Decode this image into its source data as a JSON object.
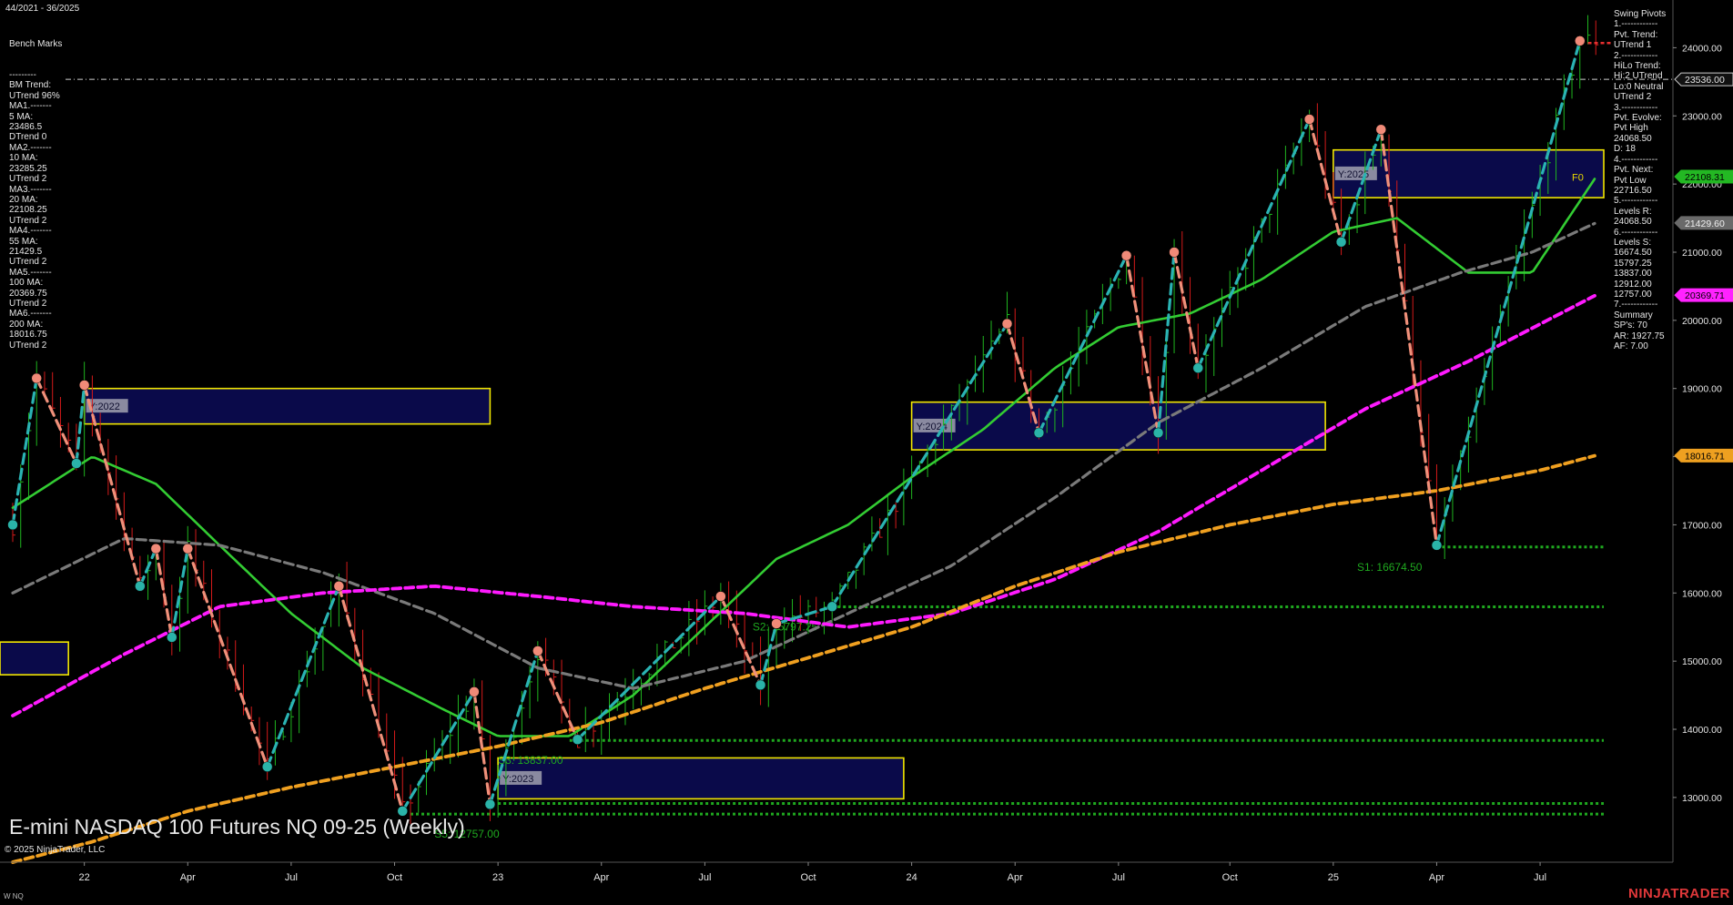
{
  "header": {
    "date_range": "44/2021 - 36/2025",
    "bench_title": "Bench Marks",
    "bench_lines": [
      "---------",
      "BM Trend:",
      "UTrend 96%",
      "MA1.-------",
      "5 MA:",
      "23486.5",
      "DTrend 0",
      "MA2.-------",
      "10 MA:",
      "23285.25",
      "UTrend 2",
      "MA3.-------",
      "20 MA:",
      "22108.25",
      "UTrend 2",
      "MA4.-------",
      "55 MA:",
      "21429.5",
      "UTrend 2",
      "MA5.-------",
      "100 MA:",
      "20369.75",
      "UTrend 2",
      "MA6.-------",
      "200 MA:",
      "18016.75",
      "UTrend 2"
    ]
  },
  "swing_panel": {
    "lines": [
      "Swing Pivots",
      "1.------------",
      "Pvt. Trend:",
      "UTrend 1",
      "2.------------",
      "HiLo Trend:",
      "Hi:2 UTrend",
      "Lo:0 Neutral",
      "UTrend 2",
      "3.------------",
      "Pvt. Evolve:",
      "Pvt High",
      "24068.50",
      "D: 18",
      "4.------------",
      "Pvt. Next:",
      "Pvt Low",
      "22716.50",
      "5.------------",
      "Levels R:",
      "24068.50",
      "6.------------",
      "Levels S:",
      "16674.50",
      "15797.25",
      "13837.00",
      "12912.00",
      "12757.00",
      "7.------------",
      "Summary",
      "SP's: 70",
      "AR: 1927.75",
      "AF: 7.00"
    ]
  },
  "footer": {
    "title": "E-mini NASDAQ 100 Futures NQ 09-25 (Weekly)",
    "copyright": "© 2025 NinjaTrader, LLC",
    "instrument": "W NQ",
    "brand": "NINJATRADER"
  },
  "colors": {
    "background": "#000000",
    "ma20": "#33cc33",
    "ma55": "#7a7a7a",
    "ma100": "#ff1aff",
    "ma200": "#f0a020",
    "swing_up": "#2ab3b3",
    "swing_down": "#f0907a",
    "support": "#1fa81f",
    "box_border": "#f2e600",
    "box_fill": "#0a0a4a"
  },
  "chart_data": {
    "type": "line",
    "title": "E-mini NASDAQ 100 Futures NQ 09-25 (Weekly)",
    "x_tick_labels": [
      "22",
      "Apr",
      "Jul",
      "Oct",
      "23",
      "Apr",
      "Jul",
      "Oct",
      "24",
      "Apr",
      "Jul",
      "Oct",
      "25",
      "Apr",
      "Jul"
    ],
    "y_tick_labels": [
      "24000.00",
      "23000.00",
      "22000.00",
      "21000.00",
      "20000.00",
      "19000.00",
      "18000.00",
      "17000.00",
      "16000.00",
      "15000.00",
      "14000.00",
      "13000.00"
    ],
    "y_ticks": [
      24000,
      23000,
      22000,
      21000,
      20000,
      19000,
      18000,
      17000,
      16000,
      15000,
      14000,
      13000
    ],
    "ylim": [
      12050,
      24700
    ],
    "x_range": [
      "2021-11-01",
      "2025-09-01"
    ],
    "price_line": {
      "value": 23536.0,
      "label": "23536.00"
    },
    "price_tags": [
      {
        "label": "23536.00",
        "value": 23536.0,
        "color": "#111111",
        "text_color": "#e6e6e6",
        "border": "#cccccc"
      },
      {
        "label": "22108.31",
        "value": 22108.31,
        "color": "#23b823",
        "text_color": "#000000",
        "border": "#23b823"
      },
      {
        "label": "21429.60",
        "value": 21429.6,
        "color": "#6a6a6a",
        "text_color": "#f0f0f0",
        "border": "#6a6a6a"
      },
      {
        "label": "20369.71",
        "value": 20369.71,
        "color": "#ff22ff",
        "text_color": "#000000",
        "border": "#ff22ff"
      },
      {
        "label": "18016.71",
        "value": 18016.71,
        "color": "#eea020",
        "text_color": "#000000",
        "border": "#eea020"
      }
    ],
    "series": [
      {
        "name": "20 MA",
        "color": "#33cc33",
        "style": "solid",
        "x": [
          "2021-11-01",
          "2022-01-10",
          "2022-03-07",
          "2022-05-02",
          "2022-07-04",
          "2022-09-05",
          "2022-11-14",
          "2023-01-02",
          "2023-03-06",
          "2023-05-01",
          "2023-07-03",
          "2023-09-04",
          "2023-11-06",
          "2024-01-01",
          "2024-03-04",
          "2024-05-06",
          "2024-07-01",
          "2024-09-02",
          "2024-11-04",
          "2025-01-06",
          "2025-03-03",
          "2025-05-05",
          "2025-06-30",
          "2025-08-25"
        ],
        "values": [
          17250,
          18000,
          17600,
          16700,
          15700,
          14900,
          14300,
          13900,
          13900,
          14500,
          15500,
          16500,
          17000,
          17700,
          18400,
          19300,
          19900,
          20100,
          20600,
          21300,
          21500,
          20700,
          20700,
          22100
        ]
      },
      {
        "name": "55 MA",
        "color": "#7a7a7a",
        "style": "dashed",
        "x": [
          "2021-11-01",
          "2022-02-07",
          "2022-05-02",
          "2022-08-01",
          "2022-11-07",
          "2023-02-06",
          "2023-05-01",
          "2023-08-07",
          "2023-11-06",
          "2024-02-05",
          "2024-05-06",
          "2024-08-05",
          "2024-11-04",
          "2025-02-03",
          "2025-04-28",
          "2025-06-30",
          "2025-08-25"
        ],
        "values": [
          16000,
          16800,
          16700,
          16300,
          15700,
          14900,
          14600,
          15000,
          15700,
          16400,
          17400,
          18500,
          19300,
          20200,
          20700,
          21000,
          21430
        ]
      },
      {
        "name": "100 MA",
        "color": "#ff1aff",
        "style": "dashed",
        "x": [
          "2021-11-01",
          "2022-02-07",
          "2022-05-02",
          "2022-08-01",
          "2022-11-07",
          "2023-02-06",
          "2023-05-01",
          "2023-08-07",
          "2023-11-06",
          "2024-02-05",
          "2024-05-06",
          "2024-08-05",
          "2024-11-04",
          "2025-02-03",
          "2025-05-05",
          "2025-08-25"
        ],
        "values": [
          14200,
          15100,
          15800,
          16000,
          16100,
          15950,
          15800,
          15700,
          15500,
          15700,
          16200,
          16900,
          17800,
          18700,
          19400,
          20370
        ]
      },
      {
        "name": "200 MA",
        "color": "#f0a020",
        "style": "dashed",
        "x": [
          "2021-11-01",
          "2022-01-10",
          "2022-04-04",
          "2022-07-04",
          "2022-10-03",
          "2023-01-02",
          "2023-04-03",
          "2023-07-03",
          "2023-10-02",
          "2024-01-01",
          "2024-04-01",
          "2024-07-01",
          "2024-10-07",
          "2025-01-06",
          "2025-04-07",
          "2025-07-07",
          "2025-08-25"
        ],
        "values": [
          12050,
          12350,
          12800,
          13150,
          13450,
          13750,
          14100,
          14600,
          15050,
          15500,
          16100,
          16600,
          17000,
          17300,
          17500,
          17800,
          18017
        ]
      }
    ],
    "swing_points": [
      {
        "x": "2021-11-01",
        "y": 17000,
        "type": "low"
      },
      {
        "x": "2021-11-22",
        "y": 19150,
        "type": "high"
      },
      {
        "x": "2021-12-27",
        "y": 17900,
        "type": "low"
      },
      {
        "x": "2022-01-03",
        "y": 19050,
        "type": "high"
      },
      {
        "x": "2022-02-21",
        "y": 16100,
        "type": "low"
      },
      {
        "x": "2022-03-07",
        "y": 16650,
        "type": "high"
      },
      {
        "x": "2022-03-21",
        "y": 15350,
        "type": "low"
      },
      {
        "x": "2022-04-04",
        "y": 16650,
        "type": "high"
      },
      {
        "x": "2022-06-13",
        "y": 13450,
        "type": "low"
      },
      {
        "x": "2022-08-15",
        "y": 16100,
        "type": "high"
      },
      {
        "x": "2022-10-10",
        "y": 12800,
        "type": "low"
      },
      {
        "x": "2022-12-12",
        "y": 14550,
        "type": "high"
      },
      {
        "x": "2022-12-26",
        "y": 12900,
        "type": "low"
      },
      {
        "x": "2023-02-06",
        "y": 15150,
        "type": "high"
      },
      {
        "x": "2023-03-13",
        "y": 13850,
        "type": "low"
      },
      {
        "x": "2023-07-17",
        "y": 15950,
        "type": "high"
      },
      {
        "x": "2023-08-21",
        "y": 14650,
        "type": "low"
      },
      {
        "x": "2023-09-04",
        "y": 15550,
        "type": "high"
      },
      {
        "x": "2023-10-23",
        "y": 15800,
        "type": "low"
      },
      {
        "x": "2024-03-25",
        "y": 19950,
        "type": "high"
      },
      {
        "x": "2024-04-22",
        "y": 18350,
        "type": "low"
      },
      {
        "x": "2024-07-08",
        "y": 20950,
        "type": "high"
      },
      {
        "x": "2024-08-05",
        "y": 18350,
        "type": "low"
      },
      {
        "x": "2024-08-19",
        "y": 21000,
        "type": "high"
      },
      {
        "x": "2024-09-09",
        "y": 19300,
        "type": "low"
      },
      {
        "x": "2024-12-16",
        "y": 22950,
        "type": "high"
      },
      {
        "x": "2025-01-13",
        "y": 21150,
        "type": "low"
      },
      {
        "x": "2025-02-17",
        "y": 22800,
        "type": "high"
      },
      {
        "x": "2025-04-07",
        "y": 16700,
        "type": "low"
      },
      {
        "x": "2025-08-11",
        "y": 24100,
        "type": "high"
      }
    ],
    "support_levels": [
      {
        "value": 16674.5,
        "x_start": "2025-04-07",
        "label": "S1: 16674.50",
        "label_x": "2025-01-27"
      },
      {
        "value": 15797.25,
        "x_start": "2023-10-23",
        "label": "S2: 15797.25",
        "label_x": "2023-08-14"
      },
      {
        "value": 13837.0,
        "x_start": "2023-03-06",
        "label": "S3: 13837.00",
        "label_x": "2023-01-02"
      },
      {
        "value": 12912.0,
        "x_start": "2023-01-02",
        "label": "",
        "label_x": ""
      },
      {
        "value": 12757.0,
        "x_start": "2022-10-17",
        "label": "S5: 12757.00",
        "label_x": "2022-11-07"
      }
    ],
    "year_boxes": [
      {
        "label": "Y:2022",
        "x_start": "2022-01-03",
        "x_end": "2022-12-26",
        "y_top": 19000,
        "y_bottom": 18480
      },
      {
        "label": "Y:2023",
        "x_start": "2023-01-02",
        "x_end": "2023-12-25",
        "y_top": 13580,
        "y_bottom": 12980
      },
      {
        "label": "Y:2024",
        "x_start": "2024-01-01",
        "x_end": "2024-12-30",
        "y_top": 18800,
        "y_bottom": 18100
      },
      {
        "label": "Y:2025",
        "x_start": "2025-01-06",
        "x_end": "2025-09-01",
        "y_top": 22500,
        "y_bottom": 21800
      },
      {
        "label": "",
        "x_start": "2021-10-04",
        "x_end": "2021-12-20",
        "y_top": 15280,
        "y_bottom": 14800
      }
    ],
    "fib_label": {
      "text": "F0",
      "x": "2025-08-04",
      "y": 22050
    },
    "pivot_projection": {
      "x_start": "2025-08-18",
      "x_end": "2025-09-08",
      "value": 24068.5
    }
  }
}
